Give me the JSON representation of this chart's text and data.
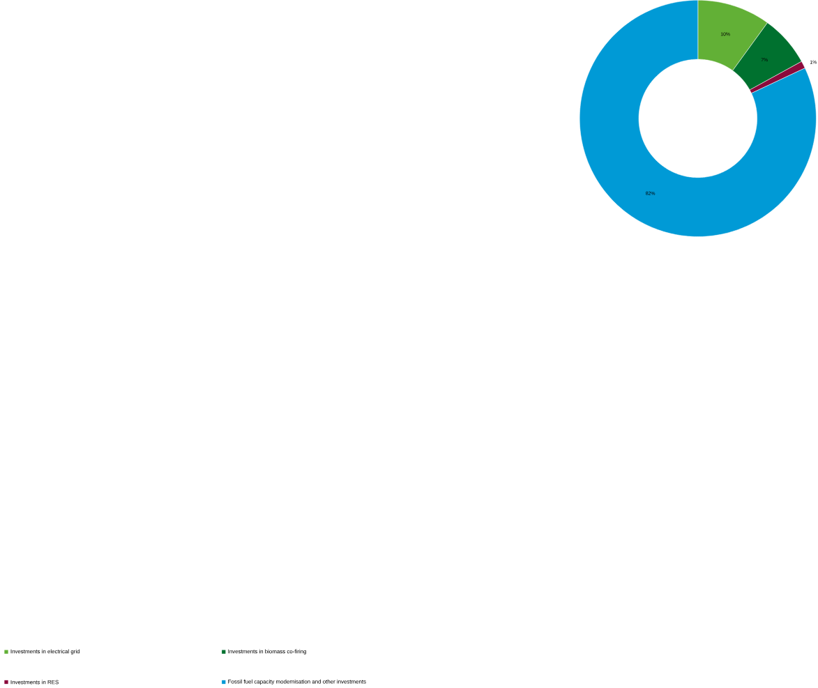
{
  "chart_data": {
    "type": "donut",
    "categories": [
      "Investments in electrical grid",
      "Investments in biomass co-firing",
      "Investments in RES",
      "Fossil fuel capacity modernisation and other investments"
    ],
    "values": [
      10,
      7,
      1,
      82
    ],
    "colors": [
      "#62b036",
      "#00712f",
      "#8b0a3c",
      "#009ad6"
    ],
    "value_labels": [
      "10%",
      "7%",
      "1%",
      "82%"
    ],
    "legend": "bottom"
  }
}
